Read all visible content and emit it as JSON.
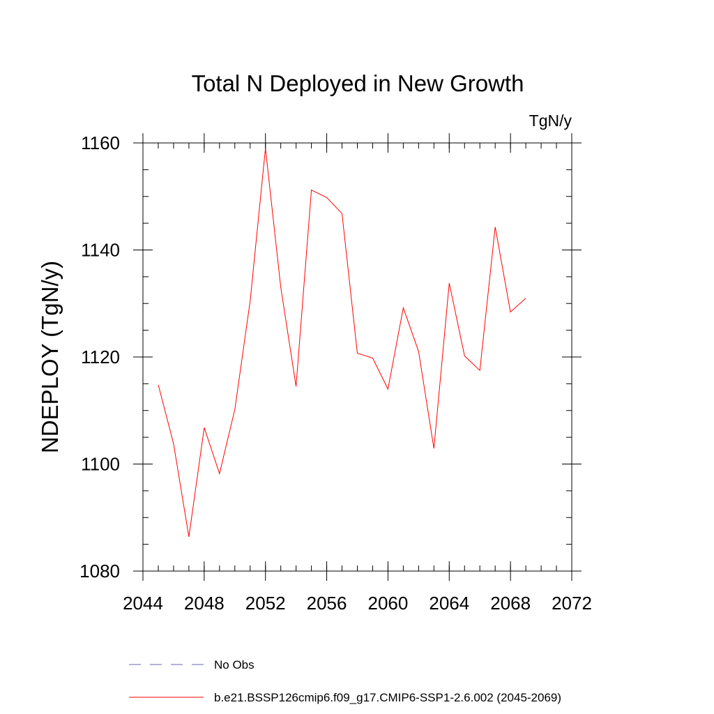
{
  "chart_data": {
    "type": "line",
    "title": "Total N Deployed in New Growth",
    "units_label": "TgN/y",
    "xlabel": "",
    "ylabel": "NDEPLOY  (TgN/y)",
    "xlim": [
      2044,
      2072
    ],
    "ylim": [
      1080,
      1160
    ],
    "x_ticks": [
      2044,
      2048,
      2052,
      2056,
      2060,
      2064,
      2068,
      2072
    ],
    "y_ticks": [
      1080,
      1100,
      1120,
      1140,
      1160
    ],
    "x_minor_step": 1,
    "y_minor_step": 5,
    "series": [
      {
        "name": "b.e21.BSSP126cmip6.f09_g17.CMIP6-SSP1-2.6.002 (2045-2069)",
        "color": "#ff0000",
        "x": [
          2045,
          2046,
          2047,
          2048,
          2049,
          2050,
          2051,
          2052,
          2053,
          2054,
          2055,
          2056,
          2057,
          2058,
          2059,
          2060,
          2061,
          2062,
          2063,
          2064,
          2065,
          2066,
          2067,
          2068,
          2069
        ],
        "y": [
          1114.8,
          1103.8,
          1086.4,
          1106.8,
          1098.2,
          1110.2,
          1130.5,
          1159.0,
          1133.0,
          1114.5,
          1151.2,
          1149.8,
          1146.8,
          1120.7,
          1119.8,
          1114.0,
          1129.2,
          1121.0,
          1102.9,
          1133.8,
          1120.2,
          1117.5,
          1144.3,
          1128.4,
          1131.0
        ]
      }
    ],
    "legend": [
      {
        "label": "No Obs",
        "style": "dashed",
        "color": "#6666aa"
      },
      {
        "label": "b.e21.BSSP126cmip6.f09_g17.CMIP6-SSP1-2.6.002 (2045-2069)",
        "style": "solid",
        "color": "#ff0000"
      }
    ],
    "legend_position": "bottom-left"
  }
}
